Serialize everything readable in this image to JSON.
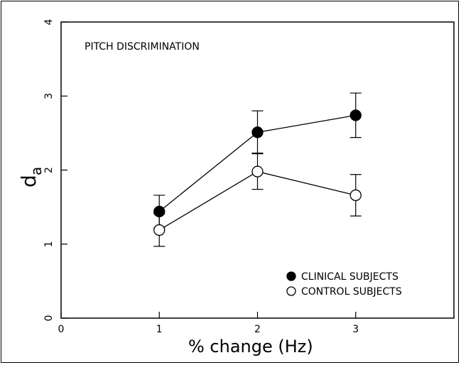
{
  "chart_data": {
    "type": "line",
    "title": "",
    "annotation": "PITCH DISCRIMINATION",
    "xlabel": "% change (Hz)",
    "ylabel_main": "d",
    "ylabel_sub": "a",
    "xlim": [
      0,
      4
    ],
    "ylim": [
      0,
      4
    ],
    "xticks": [
      0,
      1,
      2,
      3
    ],
    "yticks": [
      0,
      1,
      2,
      3,
      4
    ],
    "grid": false,
    "legend_position": "bottom-right",
    "x": [
      1,
      2,
      3
    ],
    "series": [
      {
        "name": "CLINICAL SUBJECTS",
        "marker": "filled-circle",
        "color": "#000000",
        "values": [
          1.44,
          2.51,
          2.74
        ],
        "err_low": [
          1.22,
          2.23,
          2.44
        ],
        "err_high": [
          1.66,
          2.8,
          3.04
        ]
      },
      {
        "name": "CONTROL SUBJECTS",
        "marker": "open-circle",
        "color": "#000000",
        "values": [
          1.19,
          1.98,
          1.66
        ],
        "err_low": [
          0.97,
          1.74,
          1.38
        ],
        "err_high": [
          1.41,
          2.22,
          1.94
        ]
      }
    ]
  }
}
